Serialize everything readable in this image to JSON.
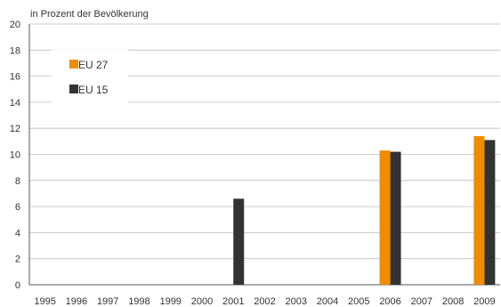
{
  "chart_data": {
    "type": "bar",
    "ylabel": "in Prozent der Bevölkerung",
    "xlabel": "",
    "ylim": [
      0,
      20
    ],
    "yticks": [
      0,
      2,
      4,
      6,
      8,
      10,
      12,
      14,
      16,
      18,
      20
    ],
    "categories": [
      "1995",
      "1996",
      "1997",
      "1998",
      "1999",
      "2000",
      "2001",
      "2002",
      "2003",
      "2004",
      "2005",
      "2006",
      "2007",
      "2008",
      "2009"
    ],
    "series": [
      {
        "name": "EU 27",
        "color": "#f08c00",
        "values": [
          null,
          null,
          null,
          null,
          null,
          null,
          null,
          null,
          null,
          null,
          null,
          10.3,
          null,
          null,
          11.4
        ]
      },
      {
        "name": "EU 15",
        "color": "#333333",
        "values": [
          null,
          null,
          null,
          null,
          null,
          null,
          6.6,
          null,
          null,
          null,
          null,
          10.2,
          null,
          null,
          11.1
        ]
      }
    ],
    "grid": true,
    "legend_position": "top-left"
  }
}
